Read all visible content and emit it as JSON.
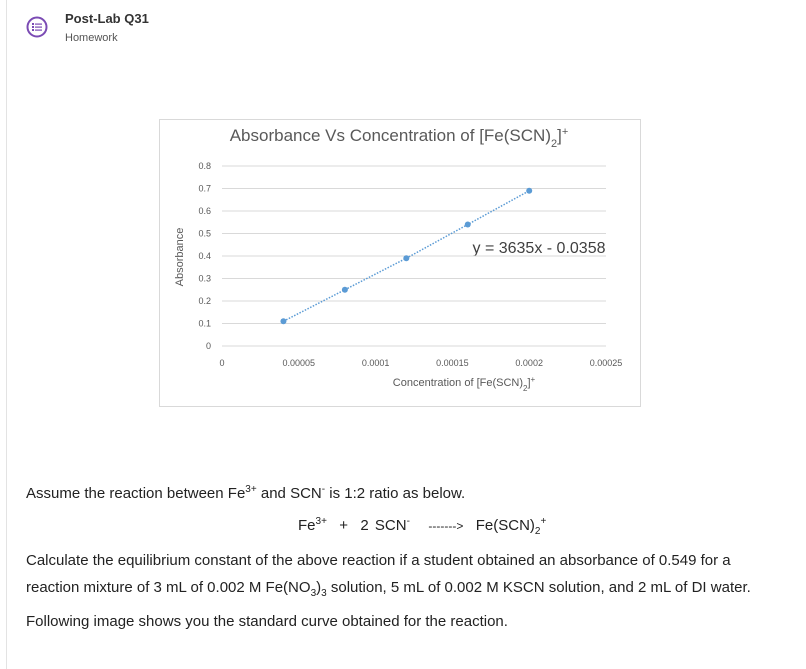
{
  "header": {
    "title": "Post-Lab Q31",
    "subtitle": "Homework"
  },
  "chart_data": {
    "type": "scatter",
    "title": [
      "Absorbance Vs Concentration of [Fe(SCN)",
      "2",
      "]",
      "+"
    ],
    "x_label": [
      "Concentration of [Fe(SCN)",
      "2",
      "]",
      "+"
    ],
    "y_label": "Absorbance",
    "annotation": "y = 3635x - 0.0358",
    "series": [
      {
        "color": "#5b9bd5",
        "x": [
          4e-05,
          8e-05,
          0.00012,
          0.00016,
          0.0002
        ],
        "values": [
          0.11,
          0.25,
          0.39,
          0.54,
          0.69
        ]
      }
    ],
    "xlim": [
      0,
      0.00025
    ],
    "xticks": [
      0,
      5e-05,
      0.0001,
      0.00015,
      0.0002,
      0.00025
    ],
    "ylim": [
      0,
      0.8
    ],
    "yticks": [
      0,
      0.1,
      0.2,
      0.3,
      0.4,
      0.5,
      0.6,
      0.7,
      0.8
    ],
    "grid": true,
    "trendline": true
  },
  "question": {
    "line1": [
      "Assume the reaction between Fe",
      "3+",
      " and SCN",
      "-",
      " is 1:2 ratio as below."
    ],
    "equation": [
      "Fe",
      "3+",
      "+",
      "2 SCN",
      "-",
      "------->",
      "Fe(SCN)",
      "2",
      "+"
    ],
    "line3": "Calculate the equilibrium constant of the above reaction if a student obtained an absorbance of 0.549 for a",
    "line4": [
      "reaction mixture of 3 mL of 0.002 M Fe(NO",
      "3",
      ")",
      "3",
      " solution, 5 mL of 0.002 M KSCN solution, and 2 mL of DI water."
    ],
    "line5": "Following image shows you the standard curve obtained for the reaction."
  }
}
